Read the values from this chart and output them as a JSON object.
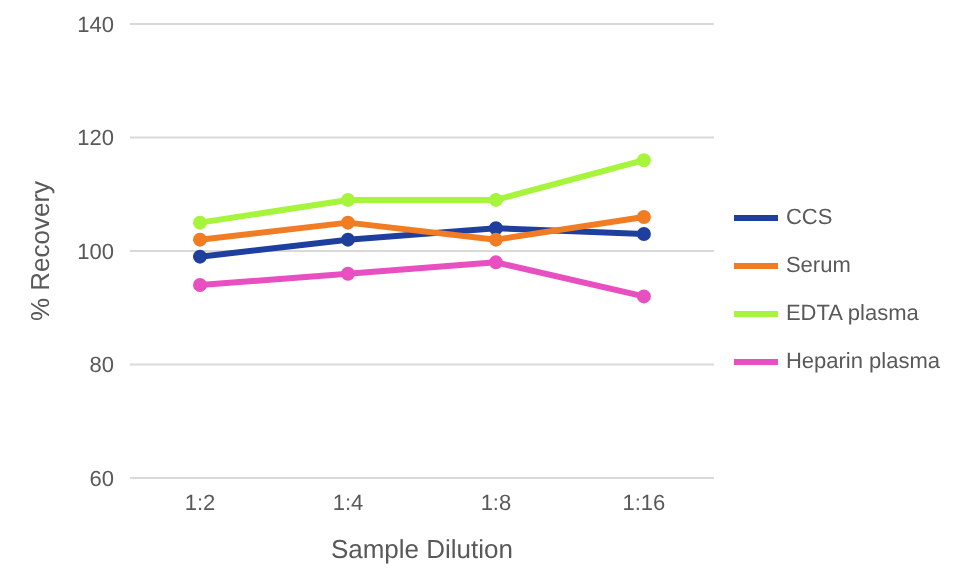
{
  "chart_data": {
    "type": "line",
    "xlabel": "Sample Dilution",
    "ylabel": "% Recovery",
    "categories": [
      "1:2",
      "1:4",
      "1:8",
      "1:16"
    ],
    "series": [
      {
        "name": "CCS",
        "color": "#1f3f9f",
        "values": [
          99,
          102,
          104,
          103
        ]
      },
      {
        "name": "Serum",
        "color": "#f07c24",
        "values": [
          102,
          105,
          102,
          106
        ]
      },
      {
        "name": "EDTA plasma",
        "color": "#a6f53c",
        "values": [
          105,
          109,
          109,
          116
        ]
      },
      {
        "name": "Heparin plasma",
        "color": "#e84fc0",
        "values": [
          94,
          96,
          98,
          92
        ]
      }
    ],
    "ylim": [
      60,
      140
    ],
    "yticks": [
      60,
      80,
      100,
      120,
      140
    ],
    "grid": "y",
    "legend": "right",
    "marker": "circle",
    "line_style": "solid"
  }
}
